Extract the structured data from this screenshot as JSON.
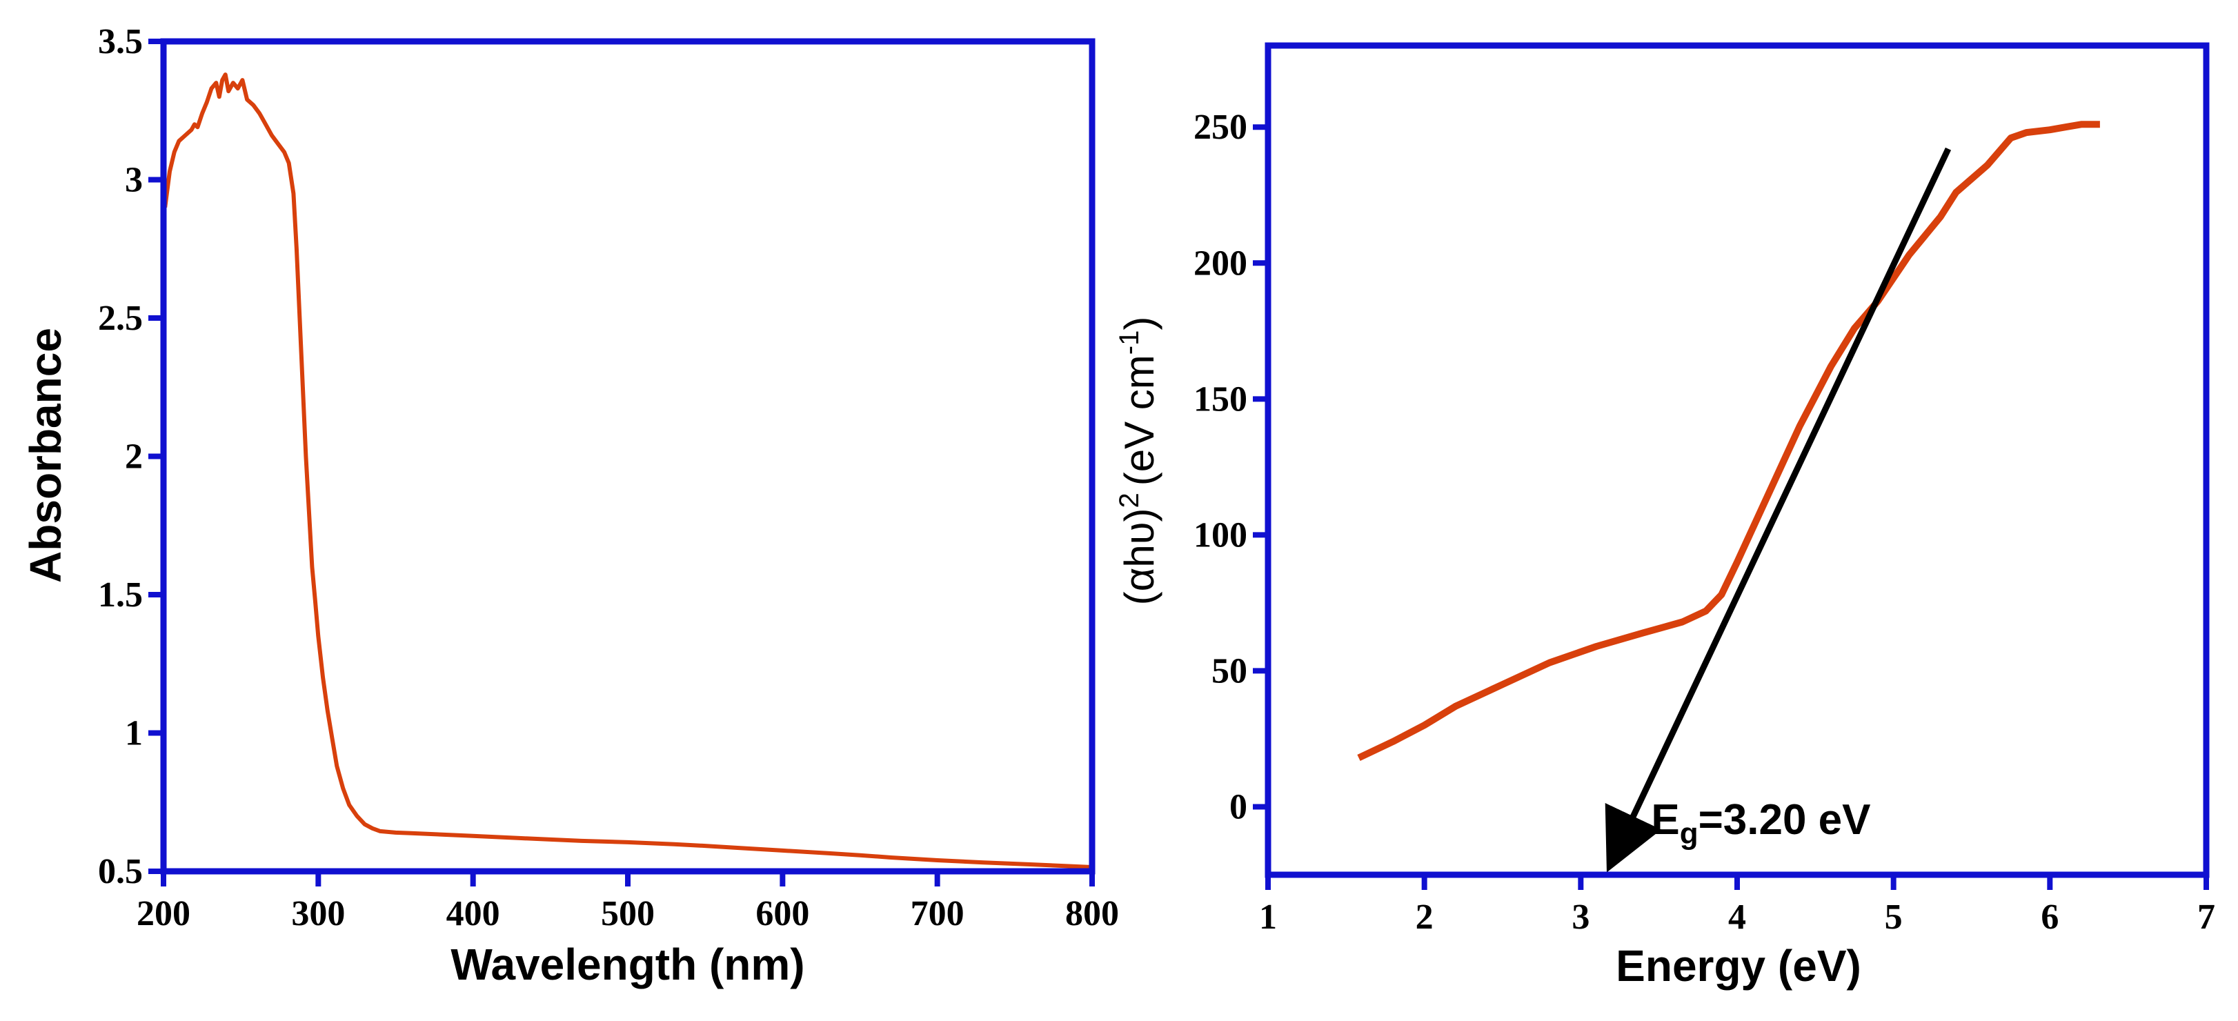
{
  "colors": {
    "frame": "#1010d0",
    "series": "#d8400c",
    "fit_line": "#000000"
  },
  "chart_data": [
    {
      "type": "line",
      "xlabel": "Wavelength (nm)",
      "ylabel": "Absorbance",
      "xlim": [
        200,
        800
      ],
      "ylim": [
        0.5,
        3.5
      ],
      "xticks": [
        200,
        300,
        400,
        500,
        600,
        700,
        800
      ],
      "xtick_labels": [
        "200",
        "300",
        "400",
        "500",
        "600",
        "700",
        "800"
      ],
      "yticks": [
        0.5,
        1,
        1.5,
        2,
        2.5,
        3,
        3.5
      ],
      "ytick_labels": [
        "0.5",
        "1",
        "1.5",
        "2",
        "2.5",
        "3",
        "3.5"
      ],
      "series": [
        {
          "name": "Absorbance",
          "x": [
            201,
            204,
            207,
            210,
            214,
            218,
            220,
            222,
            225,
            228,
            231,
            234,
            236,
            238,
            240,
            242,
            245,
            248,
            251,
            254,
            258,
            262,
            266,
            270,
            274,
            278,
            281,
            284,
            286,
            288,
            290,
            292,
            294,
            296,
            298,
            300,
            303,
            306,
            309,
            312,
            316,
            320,
            325,
            330,
            335,
            340,
            350,
            360,
            380,
            400,
            430,
            450,
            470,
            500,
            530,
            550,
            570,
            600,
            630,
            650,
            670,
            700,
            730,
            760,
            780,
            800
          ],
          "y": [
            2.9,
            3.03,
            3.1,
            3.14,
            3.16,
            3.18,
            3.2,
            3.19,
            3.24,
            3.28,
            3.33,
            3.35,
            3.3,
            3.36,
            3.38,
            3.32,
            3.35,
            3.33,
            3.36,
            3.29,
            3.27,
            3.24,
            3.2,
            3.16,
            3.13,
            3.1,
            3.06,
            2.95,
            2.75,
            2.5,
            2.25,
            2.0,
            1.8,
            1.6,
            1.48,
            1.35,
            1.2,
            1.08,
            0.98,
            0.88,
            0.8,
            0.74,
            0.7,
            0.67,
            0.655,
            0.645,
            0.64,
            0.638,
            0.633,
            0.628,
            0.62,
            0.615,
            0.61,
            0.605,
            0.598,
            0.592,
            0.585,
            0.575,
            0.565,
            0.558,
            0.55,
            0.54,
            0.532,
            0.525,
            0.52,
            0.515
          ]
        }
      ]
    },
    {
      "type": "line",
      "xlabel": "Energy (eV)",
      "ylabel_main": "(αhυ)",
      "ylabel_sup": "2",
      "ylabel_units": "(eV cm",
      "ylabel_units_sup": "-1",
      "ylabel_units_close": ")",
      "xlim": [
        1,
        7
      ],
      "ylim": [
        -25,
        280
      ],
      "xticks": [
        1,
        2,
        3,
        4,
        5,
        6,
        7
      ],
      "xtick_labels": [
        "1",
        "2",
        "3",
        "4",
        "5",
        "6",
        "7"
      ],
      "yticks": [
        0,
        50,
        100,
        150,
        200,
        250
      ],
      "ytick_labels": [
        "0",
        "50",
        "100",
        "150",
        "200",
        "250"
      ],
      "series": [
        {
          "name": "(αhυ)^2",
          "x": [
            1.58,
            1.8,
            2.0,
            2.2,
            2.5,
            2.8,
            3.1,
            3.4,
            3.65,
            3.8,
            3.9,
            4.0,
            4.2,
            4.4,
            4.6,
            4.75,
            4.9,
            5.1,
            5.3,
            5.4,
            5.6,
            5.75,
            5.85,
            6.0,
            6.1,
            6.2,
            6.32
          ],
          "y": [
            18,
            24,
            30,
            37,
            45,
            53,
            59,
            64,
            68,
            72,
            78,
            90,
            115,
            140,
            162,
            176,
            186,
            203,
            217,
            226,
            236,
            246,
            248,
            249,
            250,
            251,
            251
          ]
        }
      ],
      "fit_line": {
        "x": [
          5.35,
          3.2
        ],
        "y": [
          242,
          -20
        ]
      },
      "annotation": {
        "main": "E",
        "sub": "g",
        "rest": "=3.20 eV",
        "x": 3.45,
        "y": -10
      }
    }
  ]
}
